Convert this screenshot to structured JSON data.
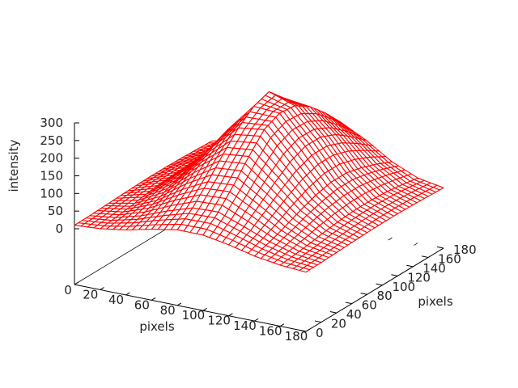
{
  "chart_data": {
    "type": "surface",
    "title": "",
    "xlabel": "pixels",
    "ylabel": "pixels",
    "zlabel": "intensity",
    "xlim": [
      0,
      180
    ],
    "ylim": [
      0,
      180
    ],
    "zlim": [
      0,
      300
    ],
    "x_ticks": [
      "0",
      "20",
      "40",
      "60",
      "80",
      "100",
      "120",
      "140",
      "160",
      "180"
    ],
    "y_ticks": [
      "0",
      "20",
      "40",
      "60",
      "80",
      "100",
      "120",
      "140",
      "160",
      "180"
    ],
    "z_ticks": [
      "0",
      "50",
      "100",
      "150",
      "200",
      "250",
      "300"
    ],
    "grid_x": [
      0,
      20,
      40,
      60,
      80,
      100,
      120,
      140,
      160,
      180
    ],
    "grid_y": [
      0,
      20,
      40,
      60,
      80,
      100,
      120,
      140,
      160,
      180
    ],
    "z_values": [
      [
        10,
        15,
        26,
        43,
        56,
        56,
        43,
        26,
        15,
        10
      ],
      [
        11,
        20,
        40,
        68,
        92,
        95,
        68,
        40,
        20,
        11
      ],
      [
        13,
        26,
        57,
        103,
        140,
        145,
        103,
        57,
        26,
        13
      ],
      [
        15,
        34,
        77,
        140,
        192,
        200,
        140,
        77,
        34,
        15
      ],
      [
        17,
        40,
        93,
        172,
        240,
        250,
        172,
        93,
        40,
        17
      ],
      [
        18,
        43,
        104,
        195,
        275,
        270,
        191,
        104,
        43,
        18
      ],
      [
        18,
        45,
        110,
        200,
        290,
        265,
        191,
        104,
        43,
        18
      ],
      [
        17,
        42,
        100,
        180,
        245,
        236,
        172,
        93,
        40,
        17
      ],
      [
        15,
        36,
        85,
        150,
        200,
        192,
        140,
        77,
        34,
        15
      ],
      [
        13,
        28,
        62,
        110,
        150,
        140,
        103,
        57,
        26,
        13
      ]
    ],
    "colors": {
      "surface": "#ff0000",
      "axes": "#000000",
      "highlight": "#00c000"
    }
  }
}
